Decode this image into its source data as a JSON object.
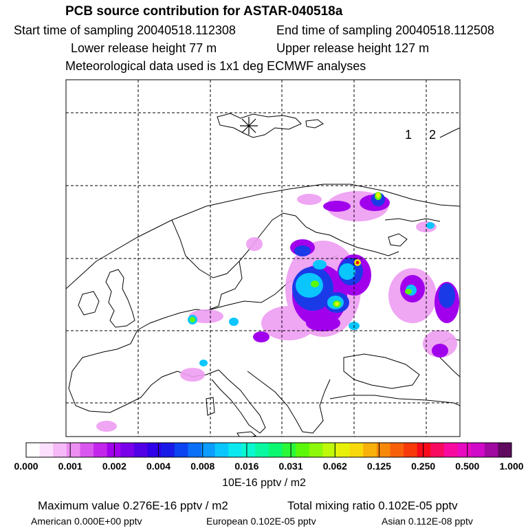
{
  "header": {
    "title": "PCB source contribution for ASTAR-040518a",
    "start_time": "Start time of sampling 20040518.112308",
    "end_time": "End time of sampling 20040518.112508",
    "lower_height": "Lower release height   77 m",
    "upper_height": "Upper release height  127 m",
    "met_data": "Meteorological data used is 1x1 deg ECMWF analyses"
  },
  "map": {
    "station_labels": [
      "1",
      "2"
    ],
    "marker_icon": "asterisk-star-icon"
  },
  "colorbar": {
    "ticks": [
      "0.000",
      "0.001",
      "0.002",
      "0.004",
      "0.008",
      "0.016",
      "0.031",
      "0.062",
      "0.125",
      "0.250",
      "0.500",
      "1.000"
    ],
    "units": "10E-16 pptv / m2",
    "colors": [
      "#ffffff",
      "#fde0fd",
      "#f5b9f7",
      "#ec8ef2",
      "#d957ee",
      "#c425ec",
      "#a100ec",
      "#7a00ea",
      "#5200e6",
      "#2f00e8",
      "#1a1ae8",
      "#0b44f0",
      "#0a70f8",
      "#0b9cfd",
      "#0ac6fd",
      "#0ae8f0",
      "#0af8d0",
      "#0af8a0",
      "#0af870",
      "#2cf83a",
      "#5cf80a",
      "#8ef80a",
      "#c0f80a",
      "#e8f00a",
      "#f8d80a",
      "#f8b00a",
      "#f8880a",
      "#f8600a",
      "#f83a0a",
      "#f80a1a",
      "#f80a60",
      "#f80aa0",
      "#e80ac0",
      "#d00ac8",
      "#a00aa0",
      "#600a60"
    ]
  },
  "footer": {
    "max_value": "Maximum value  0.276E-16 pptv / m2",
    "total_mixing": "Total mixing ratio  0.102E-05 pptv",
    "american": "American  0.000E+00 pptv",
    "european": "European  0.102E-05 pptv",
    "asian": "Asian  0.112E-08 pptv"
  }
}
